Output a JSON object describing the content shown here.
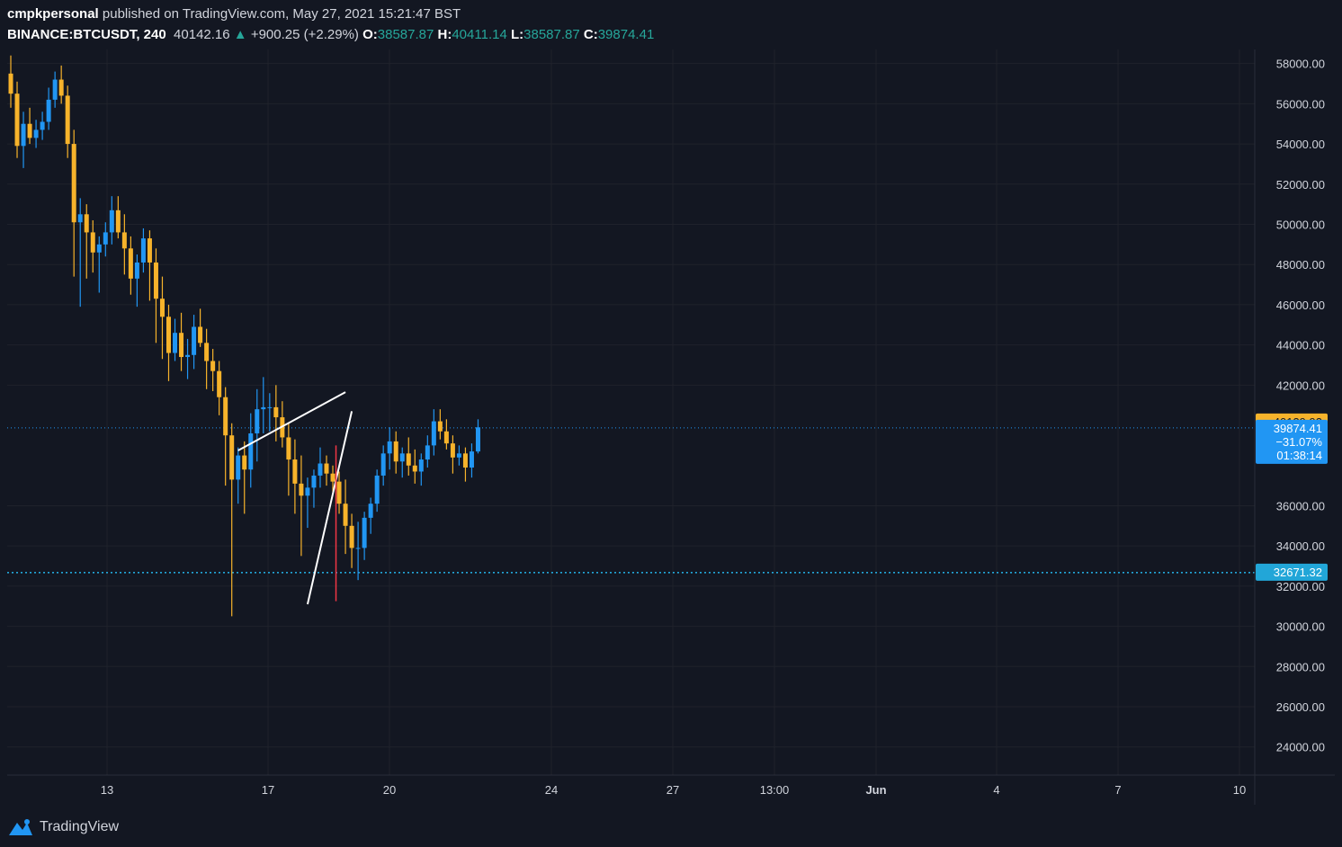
{
  "header": {
    "author": "cmpkpersonal",
    "published_text": "published on TradingView.com, May 27, 2021 15:21:47 BST",
    "symbol": "BINANCE:BTCUSDT, 240",
    "last": "40142.16",
    "change_arrow": "▲",
    "change": "+900.25 (+2.29%)",
    "o_label": "O:",
    "o_value": "38587.87",
    "h_label": "H:",
    "h_value": "40411.14",
    "l_label": "L:",
    "l_value": "38587.87",
    "c_label": "C:",
    "c_value": "39874.41"
  },
  "footer": {
    "brand": "TradingView",
    "logo_icon": "tradingview-logo-icon"
  },
  "colors": {
    "background": "#131722",
    "grid": "#1f222b",
    "up": "#2196f3",
    "down": "#f7b32b",
    "trendline": "#ffffff",
    "target_line": "#f23645",
    "dotted_line": "#22a6d8"
  },
  "chart_data": {
    "type": "candlestick",
    "timeframe": "240",
    "x_ticks": [
      "13",
      "17",
      "20",
      "24",
      "27",
      "13:00",
      "Jun",
      "4",
      "7",
      "10"
    ],
    "y_ticks": [
      "58000.00",
      "56000.00",
      "54000.00",
      "52000.00",
      "50000.00",
      "48000.00",
      "46000.00",
      "44000.00",
      "42000.00",
      "36000.00",
      "34000.00",
      "32000.00",
      "30000.00",
      "28000.00",
      "26000.00",
      "24000.00"
    ],
    "ylim": [
      22600,
      58700
    ],
    "y_tick_values": [
      58000,
      56000,
      54000,
      52000,
      50000,
      48000,
      46000,
      44000,
      42000,
      36000,
      34000,
      32000,
      30000,
      28000,
      26000,
      24000
    ],
    "price_labels": [
      {
        "value": 40139.92,
        "text": "40139.92",
        "color": "#f7b32b"
      },
      {
        "value": 39874.41,
        "text": "39874.41",
        "sub": [
          "−31.07%",
          "01:38:14"
        ],
        "color": "#2196f3"
      },
      {
        "value": 32671.32,
        "text": "32671.32",
        "color": "#22a6d8"
      }
    ],
    "horizontal_lines": [
      {
        "value": 39874.41,
        "style": "dotted",
        "color": "#2196f3"
      },
      {
        "value": 32671.32,
        "style": "dotted",
        "color": "#22a6d8"
      }
    ],
    "rising_wedge": {
      "upper": [
        [
          36,
          38750
        ],
        [
          53,
          41650
        ]
      ],
      "lower": [
        [
          47,
          31100
        ],
        [
          54,
          40700
        ]
      ]
    },
    "target_line": {
      "x": 51.5,
      "from": 39000,
      "to": 31250
    },
    "candles": [
      [
        57500,
        58400,
        55800,
        56500
      ],
      [
        56500,
        57100,
        53300,
        53900
      ],
      [
        53900,
        55600,
        52800,
        55000
      ],
      [
        55000,
        55800,
        54000,
        54300
      ],
      [
        54300,
        55200,
        53800,
        54700
      ],
      [
        54700,
        55600,
        54200,
        55100
      ],
      [
        55100,
        56800,
        54700,
        56200
      ],
      [
        56200,
        57600,
        55800,
        57200
      ],
      [
        57200,
        57900,
        56000,
        56400
      ],
      [
        56400,
        56900,
        53300,
        54000
      ],
      [
        54000,
        54700,
        47400,
        50100
      ],
      [
        50100,
        51300,
        45900,
        50500
      ],
      [
        50500,
        51000,
        47300,
        49600
      ],
      [
        49600,
        50200,
        47600,
        48600
      ],
      [
        48600,
        49400,
        46600,
        49000
      ],
      [
        49000,
        50100,
        48400,
        49600
      ],
      [
        49600,
        51400,
        49000,
        50700
      ],
      [
        50700,
        51400,
        49300,
        49600
      ],
      [
        49600,
        50500,
        47500,
        48800
      ],
      [
        48800,
        49400,
        46500,
        47300
      ],
      [
        47300,
        48500,
        45900,
        48100
      ],
      [
        48100,
        49800,
        47600,
        49300
      ],
      [
        49300,
        49700,
        46200,
        48100
      ],
      [
        48100,
        48800,
        44100,
        46300
      ],
      [
        46300,
        47400,
        43300,
        45400
      ],
      [
        45400,
        46000,
        42200,
        43600
      ],
      [
        43600,
        45300,
        43200,
        44600
      ],
      [
        44600,
        45600,
        42700,
        43400
      ],
      [
        43400,
        44300,
        42300,
        43500
      ],
      [
        43500,
        45500,
        42800,
        44900
      ],
      [
        44900,
        45800,
        43900,
        44100
      ],
      [
        44100,
        44800,
        41800,
        43200
      ],
      [
        43200,
        43800,
        41700,
        42700
      ],
      [
        42700,
        43200,
        40500,
        41400
      ],
      [
        41400,
        41900,
        37000,
        39500
      ],
      [
        39500,
        40100,
        30500,
        37300
      ],
      [
        37300,
        38900,
        36100,
        38500
      ],
      [
        38500,
        39200,
        35600,
        37800
      ],
      [
        37800,
        40600,
        36900,
        39600
      ],
      [
        39600,
        41800,
        38200,
        40800
      ],
      [
        40800,
        42400,
        39600,
        40900
      ],
      [
        40900,
        41600,
        39700,
        40900
      ],
      [
        40900,
        42000,
        39200,
        40400
      ],
      [
        40400,
        41200,
        38900,
        39400
      ],
      [
        39400,
        40100,
        36500,
        38300
      ],
      [
        38300,
        39300,
        35600,
        37100
      ],
      [
        37100,
        38500,
        33500,
        36500
      ],
      [
        36500,
        37400,
        34900,
        36900
      ],
      [
        36900,
        37800,
        35900,
        37500
      ],
      [
        37500,
        38900,
        36900,
        38100
      ],
      [
        38100,
        38500,
        37000,
        37600
      ],
      [
        37600,
        38000,
        36700,
        37200
      ],
      [
        37200,
        37700,
        35600,
        36100
      ],
      [
        36100,
        37300,
        33600,
        35000
      ],
      [
        35000,
        35600,
        32900,
        33900
      ],
      [
        33900,
        35200,
        32300,
        33900
      ],
      [
        33900,
        35700,
        33300,
        35400
      ],
      [
        35400,
        36400,
        34600,
        36100
      ],
      [
        36100,
        37800,
        35700,
        37500
      ],
      [
        37500,
        39000,
        37000,
        38600
      ],
      [
        38600,
        39900,
        37800,
        39200
      ],
      [
        39200,
        39700,
        37600,
        38200
      ],
      [
        38200,
        38900,
        37400,
        38600
      ],
      [
        38600,
        39400,
        37500,
        38000
      ],
      [
        38000,
        38800,
        37100,
        37700
      ],
      [
        37700,
        38600,
        37000,
        38300
      ],
      [
        38300,
        39500,
        37900,
        39000
      ],
      [
        39000,
        40800,
        38500,
        40200
      ],
      [
        40200,
        40800,
        39300,
        39700
      ],
      [
        39700,
        40300,
        38800,
        39100
      ],
      [
        39100,
        39500,
        37600,
        38400
      ],
      [
        38400,
        39000,
        38000,
        38600
      ],
      [
        38600,
        38900,
        37200,
        37900
      ],
      [
        37900,
        39100,
        37400,
        38700
      ],
      [
        38700,
        40300,
        38600,
        39900
      ]
    ]
  }
}
